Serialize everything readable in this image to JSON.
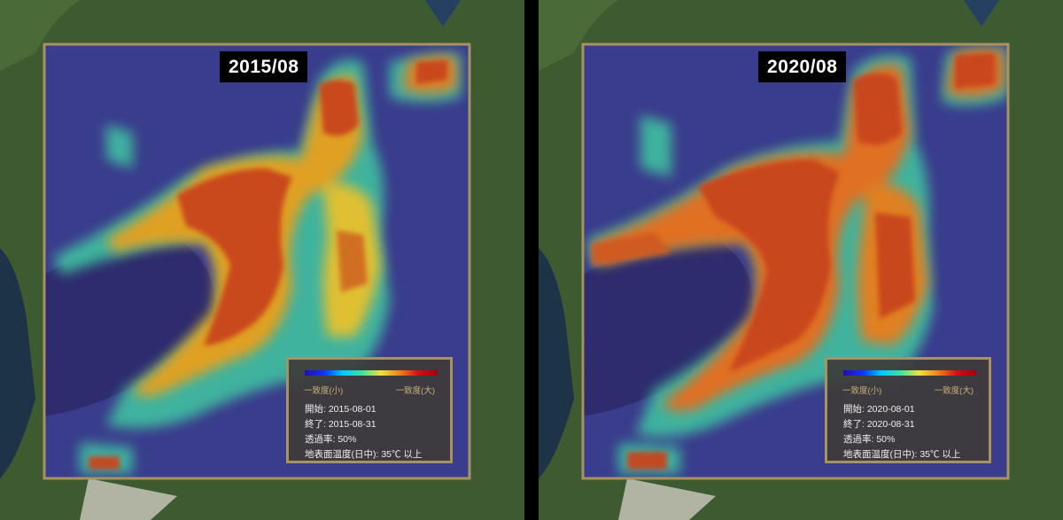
{
  "panels": [
    {
      "title": "2015/08",
      "legend": {
        "low_label": "一致度(小)",
        "high_label": "一致度(大)",
        "start": "開始: 2015-08-01",
        "end": "終了: 2015-08-31",
        "opacity": "透過率: 50%",
        "condition": "地表面温度(日中): 35℃ 以上"
      }
    },
    {
      "title": "2020/08",
      "legend": {
        "low_label": "一致度(小)",
        "high_label": "一致度(大)",
        "start": "開始: 2020-08-01",
        "end": "終了: 2020-08-31",
        "opacity": "透過率: 50%",
        "condition": "地表面温度(日中): 35℃ 以上"
      }
    }
  ],
  "colors": {
    "frame": "#a99262",
    "bay": "#2e2c6e",
    "low": "#3a3c8c",
    "high": "#c8441c",
    "land": "#3f5a32"
  }
}
